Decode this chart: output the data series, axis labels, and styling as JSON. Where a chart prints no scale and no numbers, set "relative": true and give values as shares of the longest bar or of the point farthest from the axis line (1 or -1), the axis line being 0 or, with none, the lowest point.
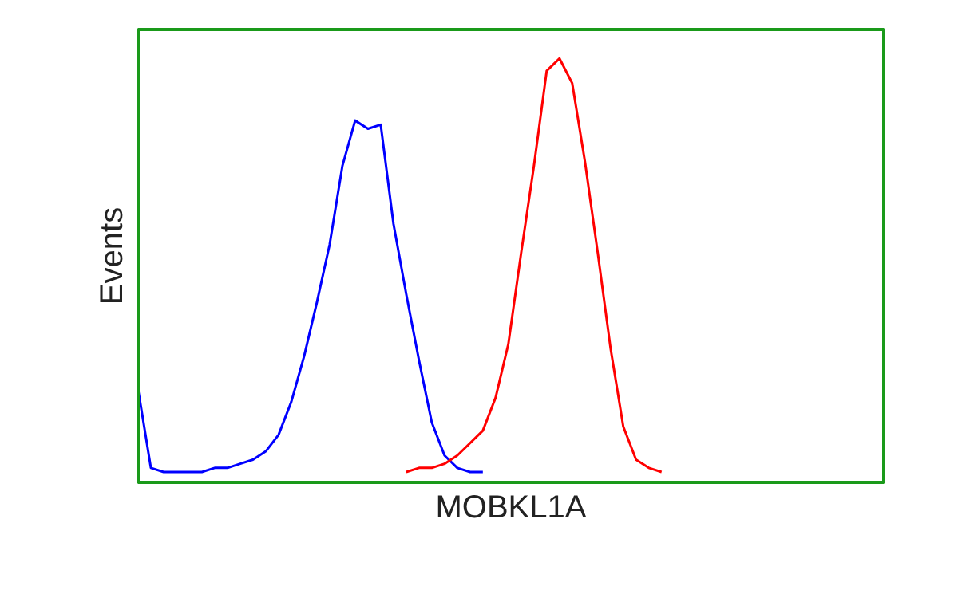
{
  "chart_data": {
    "type": "line",
    "relative": true,
    "xlabel": "MOBKL1A",
    "ylabel": "Events",
    "categories": [
      null,
      null,
      null,
      null,
      null,
      null,
      null,
      null,
      null,
      null,
      null,
      null,
      null,
      null,
      null,
      null,
      null,
      null,
      null,
      null,
      null,
      null,
      null,
      null,
      null,
      null,
      null,
      null,
      null,
      null,
      null,
      null,
      null,
      null,
      null,
      null,
      null,
      null,
      null,
      null,
      null,
      null,
      null,
      null,
      null,
      null,
      null,
      null,
      null,
      null,
      null,
      null,
      null,
      null,
      null,
      null,
      null,
      null,
      null
    ],
    "series": [
      {
        "color": "#0000ff",
        "values": [
          0.2,
          0.01,
          0,
          0,
          0,
          0,
          0.01,
          0.01,
          0.02,
          0.03,
          0.05,
          0.09,
          0.17,
          0.28,
          0.41,
          0.55,
          0.74,
          0.85,
          0.83,
          0.84,
          0.6,
          0.43,
          0.27,
          0.12,
          0.04,
          0.01,
          0,
          0,
          null,
          null,
          null,
          null,
          null,
          null,
          null,
          null,
          null,
          null,
          null,
          null,
          null,
          null,
          null,
          null,
          null,
          null,
          null,
          null,
          null,
          null,
          null,
          null,
          null,
          null,
          null,
          null,
          null,
          null,
          null
        ]
      },
      {
        "color": "#ff0000",
        "values": [
          null,
          null,
          null,
          null,
          null,
          null,
          null,
          null,
          null,
          null,
          null,
          null,
          null,
          null,
          null,
          null,
          null,
          null,
          null,
          null,
          null,
          0,
          0.01,
          0.01,
          0.02,
          0.04,
          0.07,
          0.1,
          0.18,
          0.31,
          0.53,
          0.74,
          0.97,
          1.0,
          0.94,
          0.75,
          0.53,
          0.3,
          0.11,
          0.03,
          0.01,
          0,
          null,
          null,
          null,
          null,
          null,
          null,
          null,
          null,
          null,
          null,
          null,
          null,
          null,
          null,
          null,
          null,
          null
        ]
      }
    ]
  }
}
